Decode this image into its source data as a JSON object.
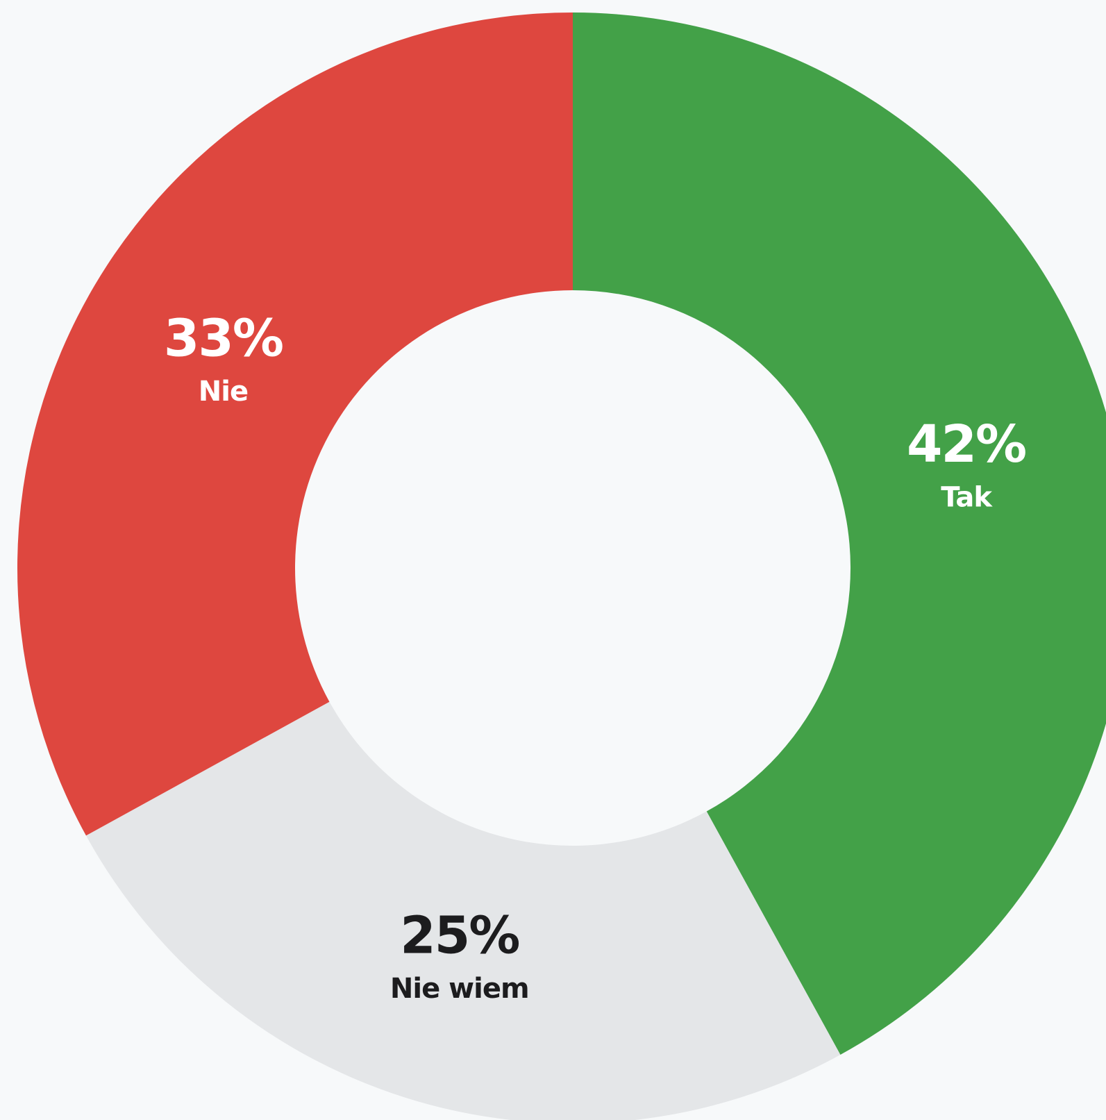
{
  "chart_data": {
    "type": "donut",
    "categories": [
      "Tak",
      "Nie wiem",
      "Nie"
    ],
    "values": [
      42,
      25,
      33
    ],
    "value_labels": [
      "42%",
      "25%",
      "33%"
    ],
    "colors": [
      "#43a148",
      "#e4e6e8",
      "#de473f"
    ]
  }
}
